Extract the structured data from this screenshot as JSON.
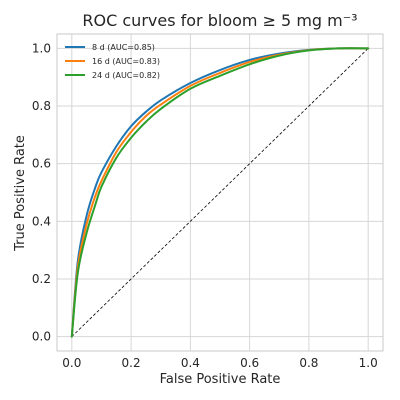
{
  "chart_data": {
    "type": "line",
    "title": "ROC curves for bloom ≥ 5 mg m⁻³",
    "xlabel": "False Positive Rate",
    "ylabel": "True Positive Rate",
    "xlim": [
      -0.05,
      1.05
    ],
    "ylim": [
      -0.05,
      1.05
    ],
    "xticks": [
      "0.0",
      "0.2",
      "0.4",
      "0.6",
      "0.8",
      "1.0"
    ],
    "yticks": [
      "0.0",
      "0.2",
      "0.4",
      "0.6",
      "0.8",
      "1.0"
    ],
    "grid": true,
    "legend_position": "top-left",
    "reference_line": {
      "style": "dashed",
      "color": "#000000",
      "points": [
        [
          0,
          0
        ],
        [
          1,
          1
        ]
      ]
    },
    "series": [
      {
        "name": "8 d (AUC=0.85)",
        "color": "#1f77b4",
        "x": [
          0,
          0.02,
          0.05,
          0.08,
          0.1,
          0.15,
          0.2,
          0.25,
          0.3,
          0.4,
          0.5,
          0.6,
          0.7,
          0.8,
          0.9,
          1.0
        ],
        "y": [
          0,
          0.26,
          0.42,
          0.52,
          0.57,
          0.66,
          0.73,
          0.78,
          0.82,
          0.88,
          0.925,
          0.96,
          0.982,
          0.995,
          1.0,
          1.0
        ]
      },
      {
        "name": "16 d (AUC=0.83)",
        "color": "#ff7f0e",
        "x": [
          0,
          0.02,
          0.05,
          0.08,
          0.1,
          0.15,
          0.2,
          0.25,
          0.3,
          0.4,
          0.5,
          0.6,
          0.7,
          0.8,
          0.9,
          1.0
        ],
        "y": [
          0,
          0.24,
          0.39,
          0.49,
          0.54,
          0.64,
          0.71,
          0.765,
          0.805,
          0.87,
          0.915,
          0.953,
          0.978,
          0.994,
          1.0,
          1.0
        ]
      },
      {
        "name": "24 d (AUC=0.82)",
        "color": "#2ca02c",
        "x": [
          0,
          0.02,
          0.05,
          0.08,
          0.1,
          0.15,
          0.2,
          0.25,
          0.3,
          0.4,
          0.5,
          0.6,
          0.7,
          0.8,
          0.9,
          1.0
        ],
        "y": [
          0,
          0.22,
          0.36,
          0.46,
          0.52,
          0.62,
          0.69,
          0.745,
          0.79,
          0.86,
          0.905,
          0.945,
          0.975,
          0.993,
          1.0,
          1.0
        ]
      }
    ]
  }
}
